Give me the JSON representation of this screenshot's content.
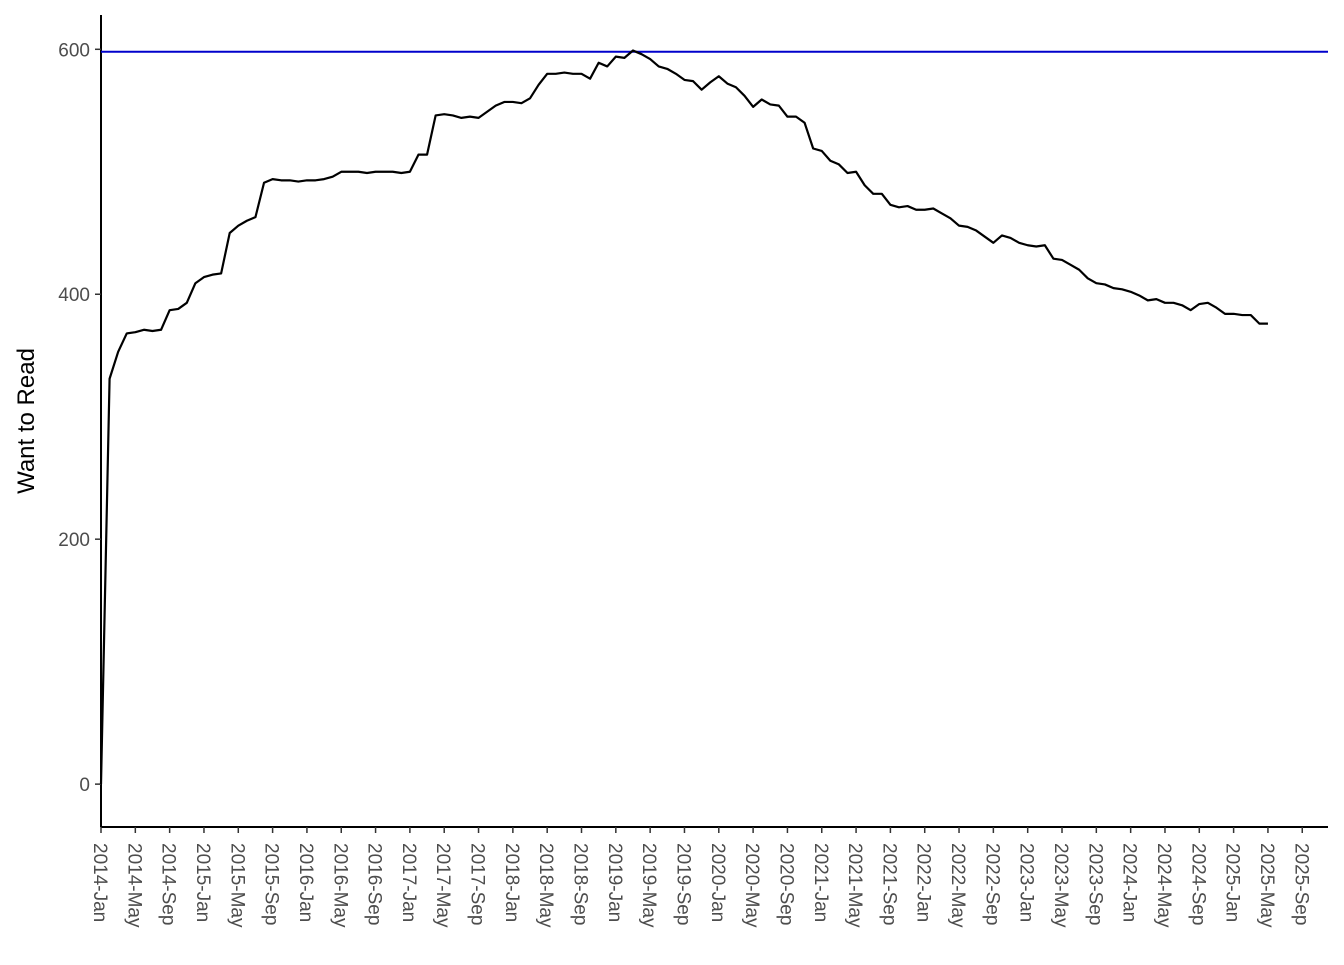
{
  "chart_data": {
    "type": "line",
    "y_label": "Want to Read",
    "color": "#000000",
    "hline": 598,
    "hline_color": "#0000cc",
    "ylim": [
      -35,
      628
    ],
    "yticks": [
      0,
      200,
      400,
      600
    ],
    "xlim": [
      "2014-Jan",
      "2025-Dec"
    ],
    "xticks": [
      "2014-Jan",
      "2014-May",
      "2014-Sep",
      "2015-Jan",
      "2015-May",
      "2015-Sep",
      "2016-Jan",
      "2016-May",
      "2016-Sep",
      "2017-Jan",
      "2017-May",
      "2017-Sep",
      "2018-Jan",
      "2018-May",
      "2018-Sep",
      "2019-Jan",
      "2019-May",
      "2019-Sep",
      "2020-Jan",
      "2020-May",
      "2020-Sep",
      "2021-Jan",
      "2021-May",
      "2021-Sep",
      "2022-Jan",
      "2022-May",
      "2022-Sep",
      "2023-Jan",
      "2023-May",
      "2023-Sep",
      "2024-Jan",
      "2024-May",
      "2024-Sep",
      "2025-Jan",
      "2025-May",
      "2025-Sep"
    ],
    "x": [
      "2014-Jan",
      "2014-Feb",
      "2014-Mar",
      "2014-Apr",
      "2014-May",
      "2014-Jun",
      "2014-Jul",
      "2014-Aug",
      "2014-Sep",
      "2014-Oct",
      "2014-Nov",
      "2014-Dec",
      "2015-Jan",
      "2015-Feb",
      "2015-Mar",
      "2015-Apr",
      "2015-May",
      "2015-Jun",
      "2015-Jul",
      "2015-Aug",
      "2015-Sep",
      "2015-Oct",
      "2015-Nov",
      "2015-Dec",
      "2016-Jan",
      "2016-Feb",
      "2016-Mar",
      "2016-Apr",
      "2016-May",
      "2016-Jun",
      "2016-Jul",
      "2016-Aug",
      "2016-Sep",
      "2016-Oct",
      "2016-Nov",
      "2016-Dec",
      "2017-Jan",
      "2017-Feb",
      "2017-Mar",
      "2017-Apr",
      "2017-May",
      "2017-Jun",
      "2017-Jul",
      "2017-Aug",
      "2017-Sep",
      "2017-Oct",
      "2017-Nov",
      "2017-Dec",
      "2018-Jan",
      "2018-Feb",
      "2018-Mar",
      "2018-Apr",
      "2018-May",
      "2018-Jun",
      "2018-Jul",
      "2018-Aug",
      "2018-Sep",
      "2018-Oct",
      "2018-Nov",
      "2018-Dec",
      "2019-Jan",
      "2019-Feb",
      "2019-Mar",
      "2019-Apr",
      "2019-May",
      "2019-Jun",
      "2019-Jul",
      "2019-Aug",
      "2019-Sep",
      "2019-Oct",
      "2019-Nov",
      "2019-Dec",
      "2020-Jan",
      "2020-Feb",
      "2020-Mar",
      "2020-Apr",
      "2020-May",
      "2020-Jun",
      "2020-Jul",
      "2020-Aug",
      "2020-Sep",
      "2020-Oct",
      "2020-Nov",
      "2020-Dec",
      "2021-Jan",
      "2021-Feb",
      "2021-Mar",
      "2021-Apr",
      "2021-May",
      "2021-Jun",
      "2021-Jul",
      "2021-Aug",
      "2021-Sep",
      "2021-Oct",
      "2021-Nov",
      "2021-Dec",
      "2022-Jan",
      "2022-Feb",
      "2022-Mar",
      "2022-Apr",
      "2022-May",
      "2022-Jun",
      "2022-Jul",
      "2022-Aug",
      "2022-Sep",
      "2022-Oct",
      "2022-Nov",
      "2022-Dec",
      "2023-Jan",
      "2023-Feb",
      "2023-Mar",
      "2023-Apr",
      "2023-May",
      "2023-Jun",
      "2023-Jul",
      "2023-Aug",
      "2023-Sep",
      "2023-Oct",
      "2023-Nov",
      "2023-Dec",
      "2024-Jan",
      "2024-Feb",
      "2024-Mar",
      "2024-Apr",
      "2024-May",
      "2024-Jun",
      "2024-Jul",
      "2024-Aug",
      "2024-Sep",
      "2024-Oct",
      "2024-Nov",
      "2024-Dec",
      "2025-Jan",
      "2025-Feb",
      "2025-Mar",
      "2025-Apr",
      "2025-May"
    ],
    "values": [
      0,
      331,
      353,
      368,
      369,
      371,
      370,
      371,
      387,
      388,
      393,
      409,
      414,
      416,
      417,
      450,
      456,
      460,
      463,
      491,
      494,
      493,
      493,
      492,
      493,
      493,
      494,
      496,
      500,
      500,
      500,
      499,
      500,
      500,
      500,
      499,
      500,
      514,
      514,
      546,
      547,
      546,
      544,
      545,
      544,
      549,
      554,
      557,
      557,
      556,
      560,
      571,
      580,
      580,
      581,
      580,
      580,
      576,
      589,
      586,
      594,
      593,
      599,
      596,
      592,
      586,
      584,
      580,
      575,
      574,
      567,
      573,
      578,
      572,
      569,
      562,
      553,
      559,
      555,
      554,
      545,
      545,
      540,
      519,
      517,
      509,
      506,
      499,
      500,
      489,
      482,
      482,
      473,
      471,
      472,
      469,
      469,
      470,
      466,
      462,
      456,
      455,
      452,
      447,
      442,
      448,
      446,
      442,
      440,
      439,
      440,
      429,
      428,
      424,
      420,
      413,
      409,
      408,
      405,
      404,
      402,
      399,
      395,
      396,
      393,
      393,
      391,
      387,
      392,
      393,
      389,
      384,
      384,
      383,
      383,
      376,
      376
    ]
  }
}
